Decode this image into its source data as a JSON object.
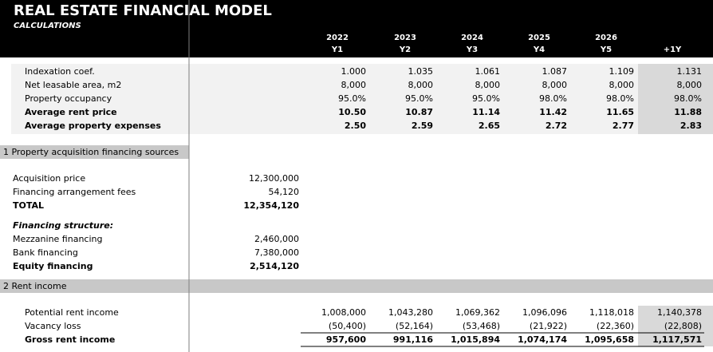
{
  "header": {
    "title": "REAL ESTATE FINANCIAL MODEL",
    "subtitle": "CALCULATIONS",
    "columns": [
      {
        "year": "2022",
        "period": "Y1"
      },
      {
        "year": "2023",
        "period": "Y2"
      },
      {
        "year": "2024",
        "period": "Y3"
      },
      {
        "year": "2025",
        "period": "Y4"
      },
      {
        "year": "2026",
        "period": "Y5"
      },
      {
        "period": "+1Y"
      }
    ]
  },
  "calculations": {
    "rows": [
      {
        "label": "Indexation coef.",
        "values": [
          "1.000",
          "1.035",
          "1.061",
          "1.087",
          "1.109",
          "1.131"
        ]
      },
      {
        "label": "Net leasable area, m2",
        "values": [
          "8,000",
          "8,000",
          "8,000",
          "8,000",
          "8,000",
          "8,000"
        ]
      },
      {
        "label": "Property occupancy",
        "values": [
          "95.0%",
          "95.0%",
          "95.0%",
          "98.0%",
          "98.0%",
          "98.0%"
        ]
      },
      {
        "label": "Average rent price",
        "bold": true,
        "values": [
          "10.50",
          "10.87",
          "11.14",
          "11.42",
          "11.65",
          "11.88"
        ]
      },
      {
        "label": "Average property expenses",
        "bold": true,
        "values": [
          "2.50",
          "2.59",
          "2.65",
          "2.72",
          "2.77",
          "2.83"
        ]
      }
    ]
  },
  "financing": {
    "title": "1 Property acquisition financing sources",
    "rows": [
      {
        "label": "Acquisition price",
        "value": "12,300,000"
      },
      {
        "label": "Financing arrangement fees",
        "value": "54,120"
      },
      {
        "label": "TOTAL",
        "value": "12,354,120",
        "bold": true
      }
    ],
    "structure_title": "Financing structure:",
    "structure_rows": [
      {
        "label": "Mezzanine financing",
        "value": "2,460,000"
      },
      {
        "label": "Bank financing",
        "value": "7,380,000"
      },
      {
        "label": "Equity financing",
        "value": "2,514,120",
        "bold": true
      }
    ]
  },
  "rent": {
    "title": "2 Rent income",
    "rows": [
      {
        "label": "Potential rent income",
        "values": [
          "1,008,000",
          "1,043,280",
          "1,069,362",
          "1,096,096",
          "1,118,018",
          "1,140,378"
        ]
      },
      {
        "label": "Vacancy loss",
        "values": [
          "(50,400)",
          "(52,164)",
          "(53,468)",
          "(21,922)",
          "(22,360)",
          "(22,808)"
        ]
      },
      {
        "label": "Gross rent income",
        "bold": true,
        "values": [
          "957,600",
          "991,116",
          "1,015,894",
          "1,074,174",
          "1,095,658",
          "1,117,571"
        ]
      }
    ]
  }
}
